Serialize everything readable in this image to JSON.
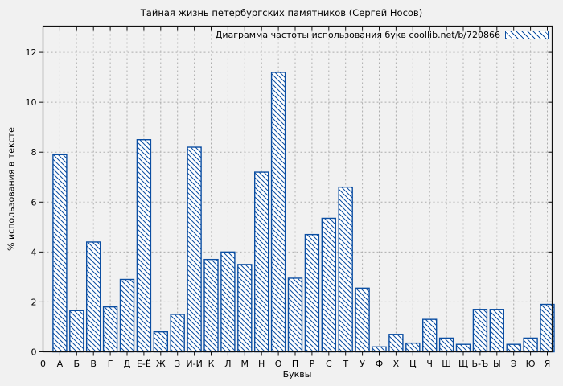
{
  "chart_data": {
    "type": "bar",
    "title": "Тайная жизнь петербургских памятников (Сергей Носов)",
    "legend": "Диаграмма частоты использования букв coollib.net/b/720866",
    "legend_position": "top-right-inside",
    "xlabel": "Буквы",
    "ylabel": "% использования в тексте",
    "origin_label": "0",
    "categories": [
      "А",
      "Б",
      "В",
      "Г",
      "Д",
      "Е-Ё",
      "Ж",
      "З",
      "И-Й",
      "К",
      "Л",
      "М",
      "Н",
      "О",
      "П",
      "Р",
      "С",
      "Т",
      "У",
      "Ф",
      "Х",
      "Ц",
      "Ч",
      "Ш",
      "Щ",
      "Ь-Ъ",
      "Ы",
      "Э",
      "Ю",
      "Я"
    ],
    "values": [
      7.9,
      1.65,
      4.4,
      1.8,
      2.9,
      8.5,
      0.8,
      1.5,
      8.2,
      3.7,
      4.0,
      3.5,
      7.2,
      11.2,
      2.95,
      4.7,
      5.35,
      6.6,
      2.55,
      0.2,
      0.7,
      0.35,
      1.3,
      0.55,
      0.3,
      1.7,
      1.7,
      0.3,
      0.55,
      1.9
    ],
    "yticks": [
      0,
      2,
      4,
      6,
      8,
      10,
      12
    ],
    "ylim": [
      0,
      13.05
    ],
    "grid": true,
    "grid_style": "dashed",
    "hatch_style": "backslash-diagonal",
    "colors": {
      "bar_stroke": "#0b4ea2",
      "bar_fill": "#ffffff",
      "hatch": "#0b4ea2",
      "grid": "#adadad",
      "axis": "#111111",
      "text": "#000000",
      "background": "#f1f1f1"
    }
  }
}
